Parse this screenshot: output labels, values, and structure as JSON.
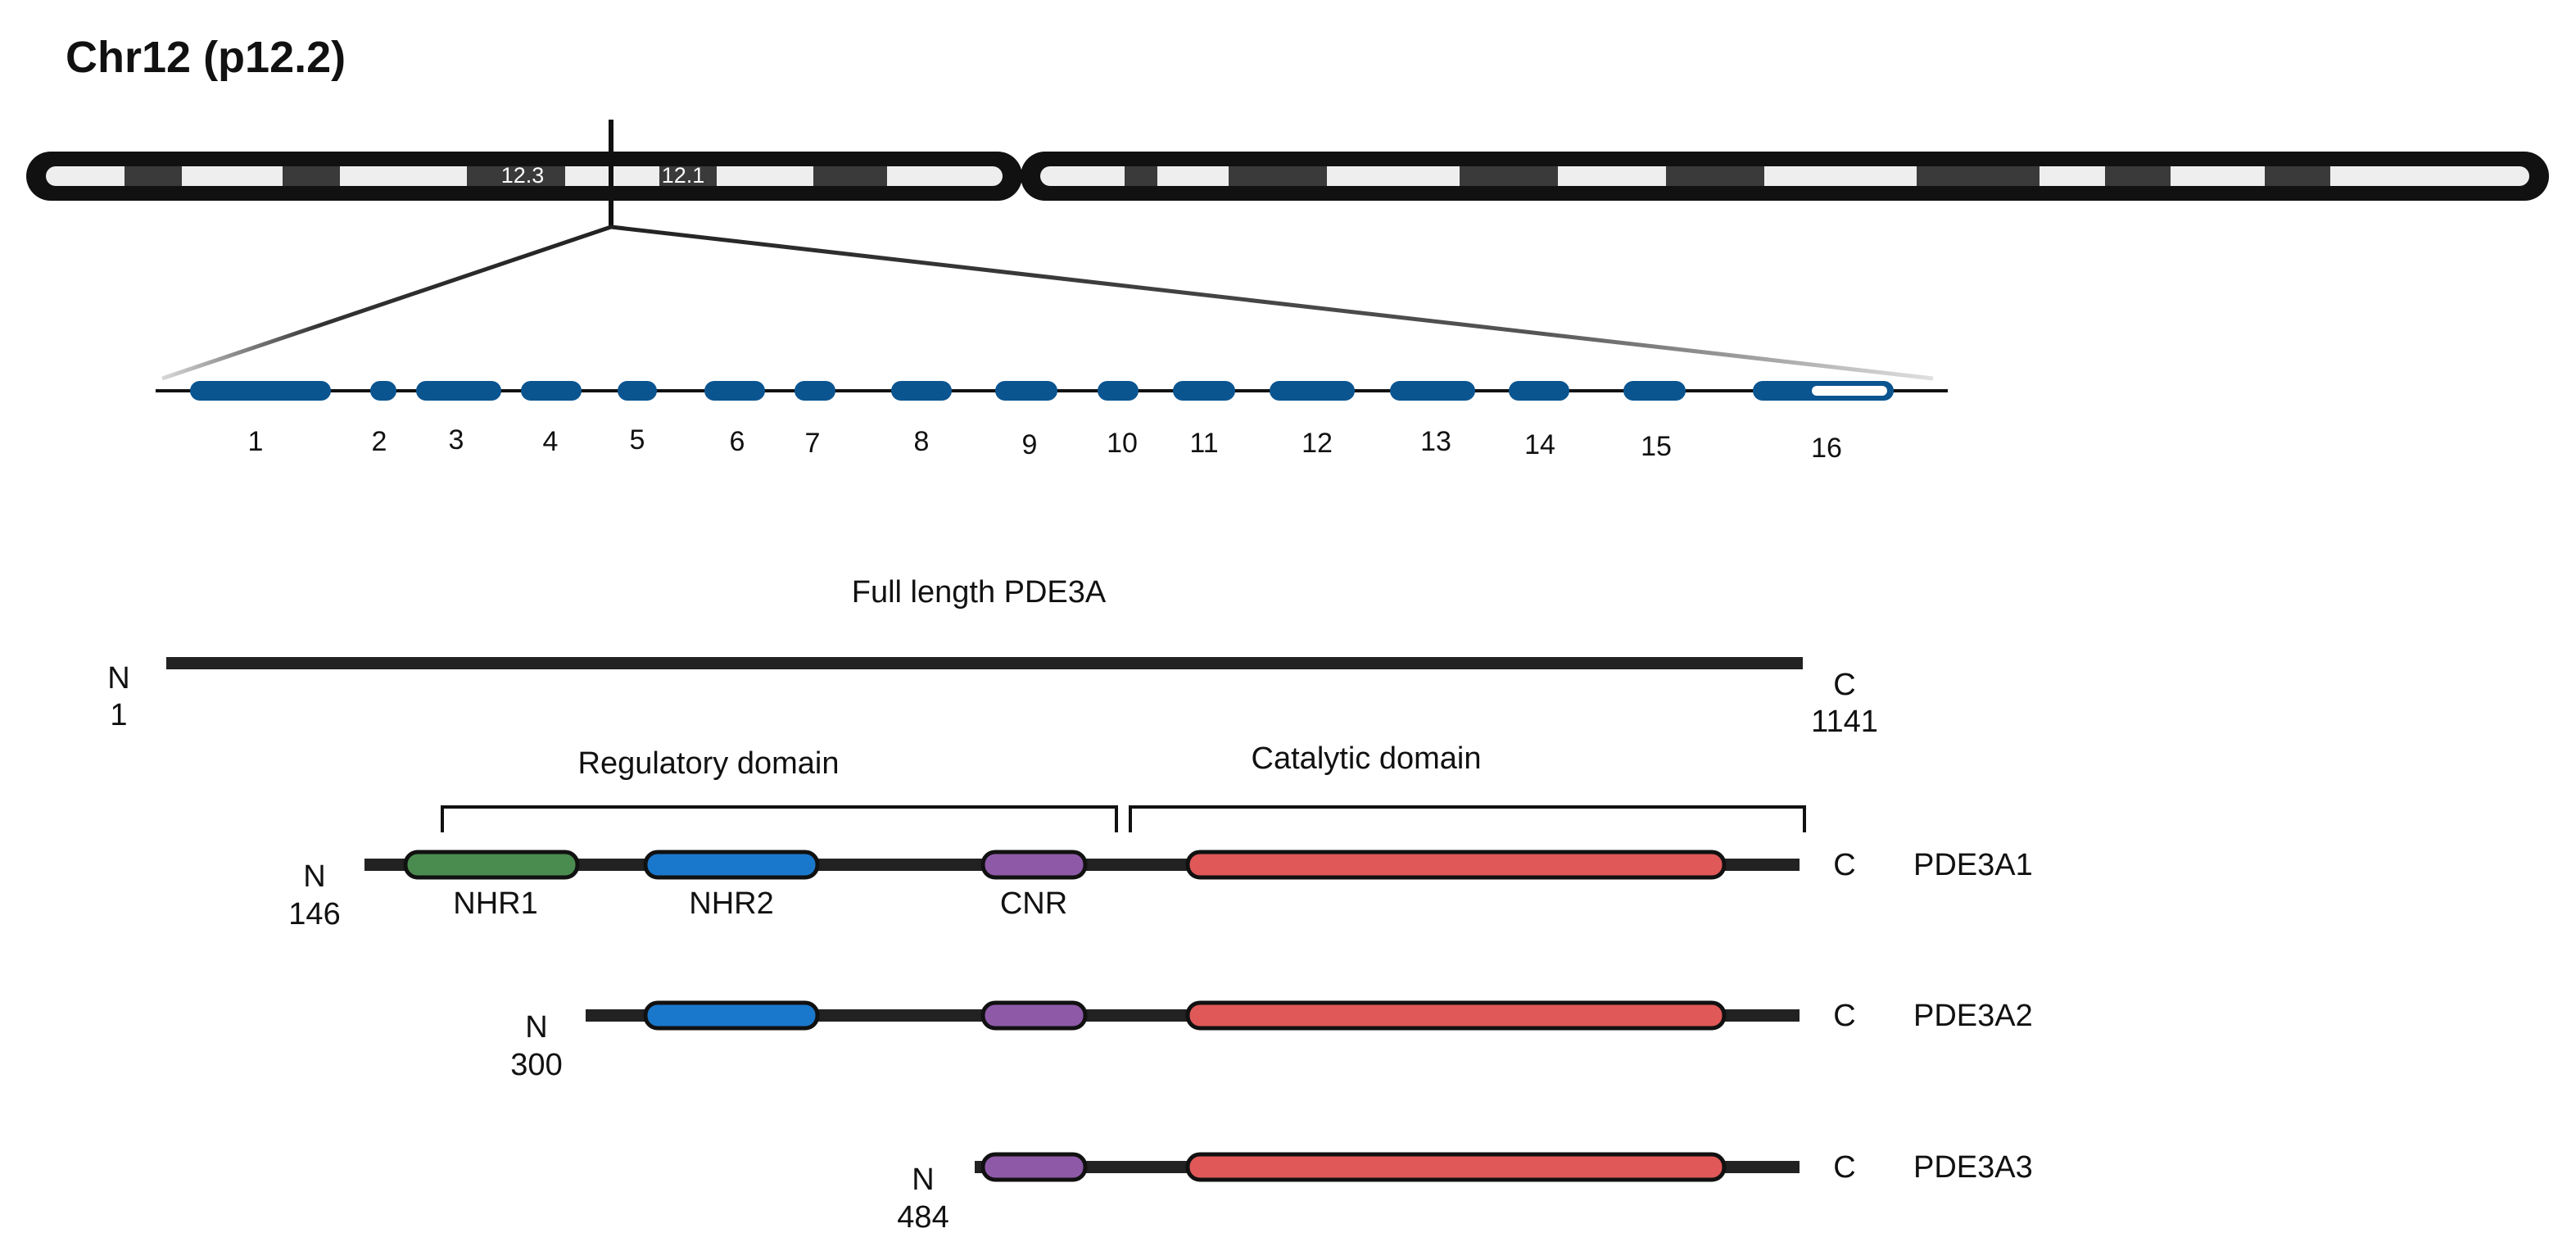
{
  "title": "Chr12 (p12.2)",
  "chromosome": {
    "band_labels": [
      "12.3",
      "12.1"
    ],
    "colors": {
      "outline": "#111111",
      "band_light": "#eeeeee",
      "band_dark": "#3a3a3a"
    }
  },
  "gene": {
    "exon_labels": [
      "1",
      "2",
      "3",
      "4",
      "5",
      "6",
      "7",
      "8",
      "9",
      "10",
      "11",
      "12",
      "13",
      "14",
      "15",
      "16"
    ],
    "exon_color": "#0a5490"
  },
  "full_length": {
    "title": "Full length PDE3A",
    "n_label": "N",
    "n_position": "1",
    "c_label": "C",
    "c_position": "1141"
  },
  "domains": {
    "regulatory": "Regulatory domain",
    "catalytic": "Catalytic domain",
    "nhr1": "NHR1",
    "nhr2": "NHR2",
    "cnr": "CNR",
    "colors": {
      "nhr1": "#4a8c4f",
      "nhr2": "#1a78cc",
      "cnr": "#8e5aa8",
      "catalytic": "#e05858"
    }
  },
  "isoforms": [
    {
      "name": "PDE3A1",
      "n_label": "N",
      "n_position": "146",
      "c_label": "C"
    },
    {
      "name": "PDE3A2",
      "n_label": "N",
      "n_position": "300",
      "c_label": "C"
    },
    {
      "name": "PDE3A3",
      "n_label": "N",
      "n_position": "484",
      "c_label": "C"
    }
  ]
}
